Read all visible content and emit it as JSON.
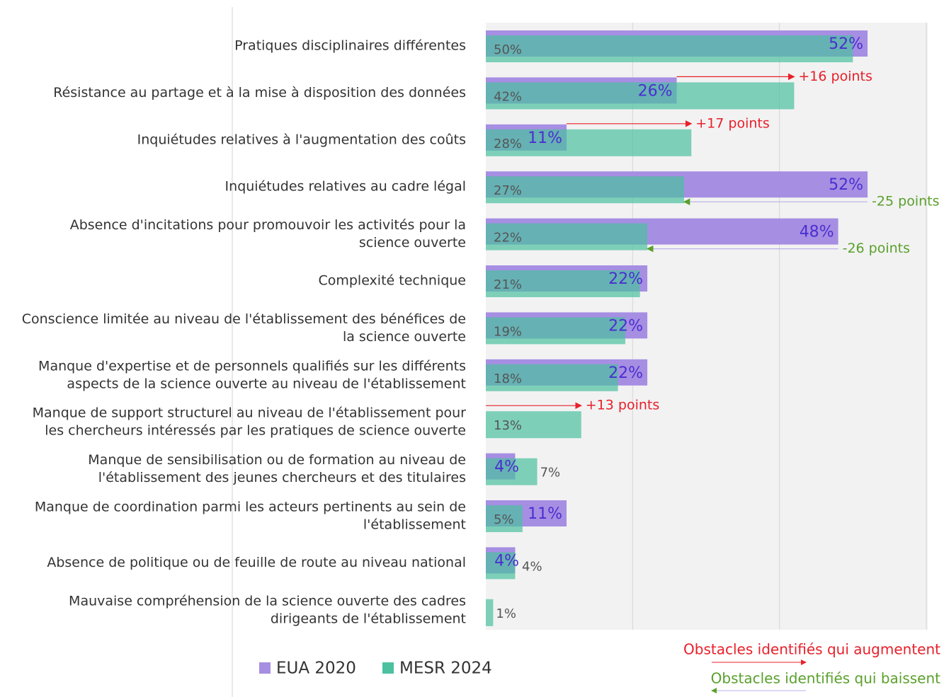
{
  "chart_data": {
    "type": "hbar_overlap",
    "categories": [
      "Pratiques disciplinaires différentes",
      "Résistance au partage et à la mise à disposition des données",
      "Inquiétudes relatives à l'augmentation des coûts",
      "Inquiétudes relatives au cadre légal",
      "Absence d'incitations pour promouvoir les activités pour la\nscience ouverte",
      "Complexité technique",
      "Conscience limitée au niveau de l'établissement des bénéfices de\nla science ouverte",
      "Manque d'expertise et de personnels qualifiés sur les différents\naspects de la science ouverte au niveau de l'établissement",
      "Manque de support structurel au niveau de l'établissement pour\nles chercheurs intéressés par les pratiques de science ouverte",
      "Manque de sensibilisation ou de formation au niveau de\nl'établissement des jeunes chercheurs et des titulaires",
      "Manque de coordination parmi les acteurs pertinents au sein de\nl'établissement",
      "Absence de politique ou de feuille de route au niveau national",
      "Mauvaise compréhension de la science ouverte des cadres\ndirigeants de l'établissement"
    ],
    "series": [
      {
        "name": "EUA 2020",
        "color": "#a68ee3",
        "label_color": "#4a2fcf",
        "values": [
          52,
          26,
          11,
          52,
          48,
          22,
          22,
          22,
          null,
          4,
          11,
          4,
          null
        ]
      },
      {
        "name": "MESR 2024",
        "color": "#4cc1a0",
        "label_color": "#555555",
        "values": [
          50,
          42,
          28,
          27,
          22,
          21,
          19,
          18,
          13,
          7,
          5,
          4,
          1
        ]
      }
    ],
    "xlim": [
      0,
      60
    ],
    "grid_lines": [
      20,
      40,
      60
    ],
    "annotations": [
      {
        "text": "+16 points",
        "category": 1,
        "color": "#e8202a"
      },
      {
        "text": "+17 points",
        "category": 2,
        "color": "#e8202a"
      },
      {
        "text": "-25 points",
        "category": 3,
        "color": "#5aa02c"
      },
      {
        "text": "-26 points",
        "category": 4,
        "color": "#5aa02c"
      },
      {
        "text": "+13 points",
        "category": 8,
        "color": "#e8202a"
      }
    ],
    "key": [
      {
        "text": "Obstacles identifiés qui augmentent",
        "color": "#e8202a"
      },
      {
        "text": "Obstacles identifiés qui baissent",
        "color": "#5aa02c"
      }
    ]
  }
}
